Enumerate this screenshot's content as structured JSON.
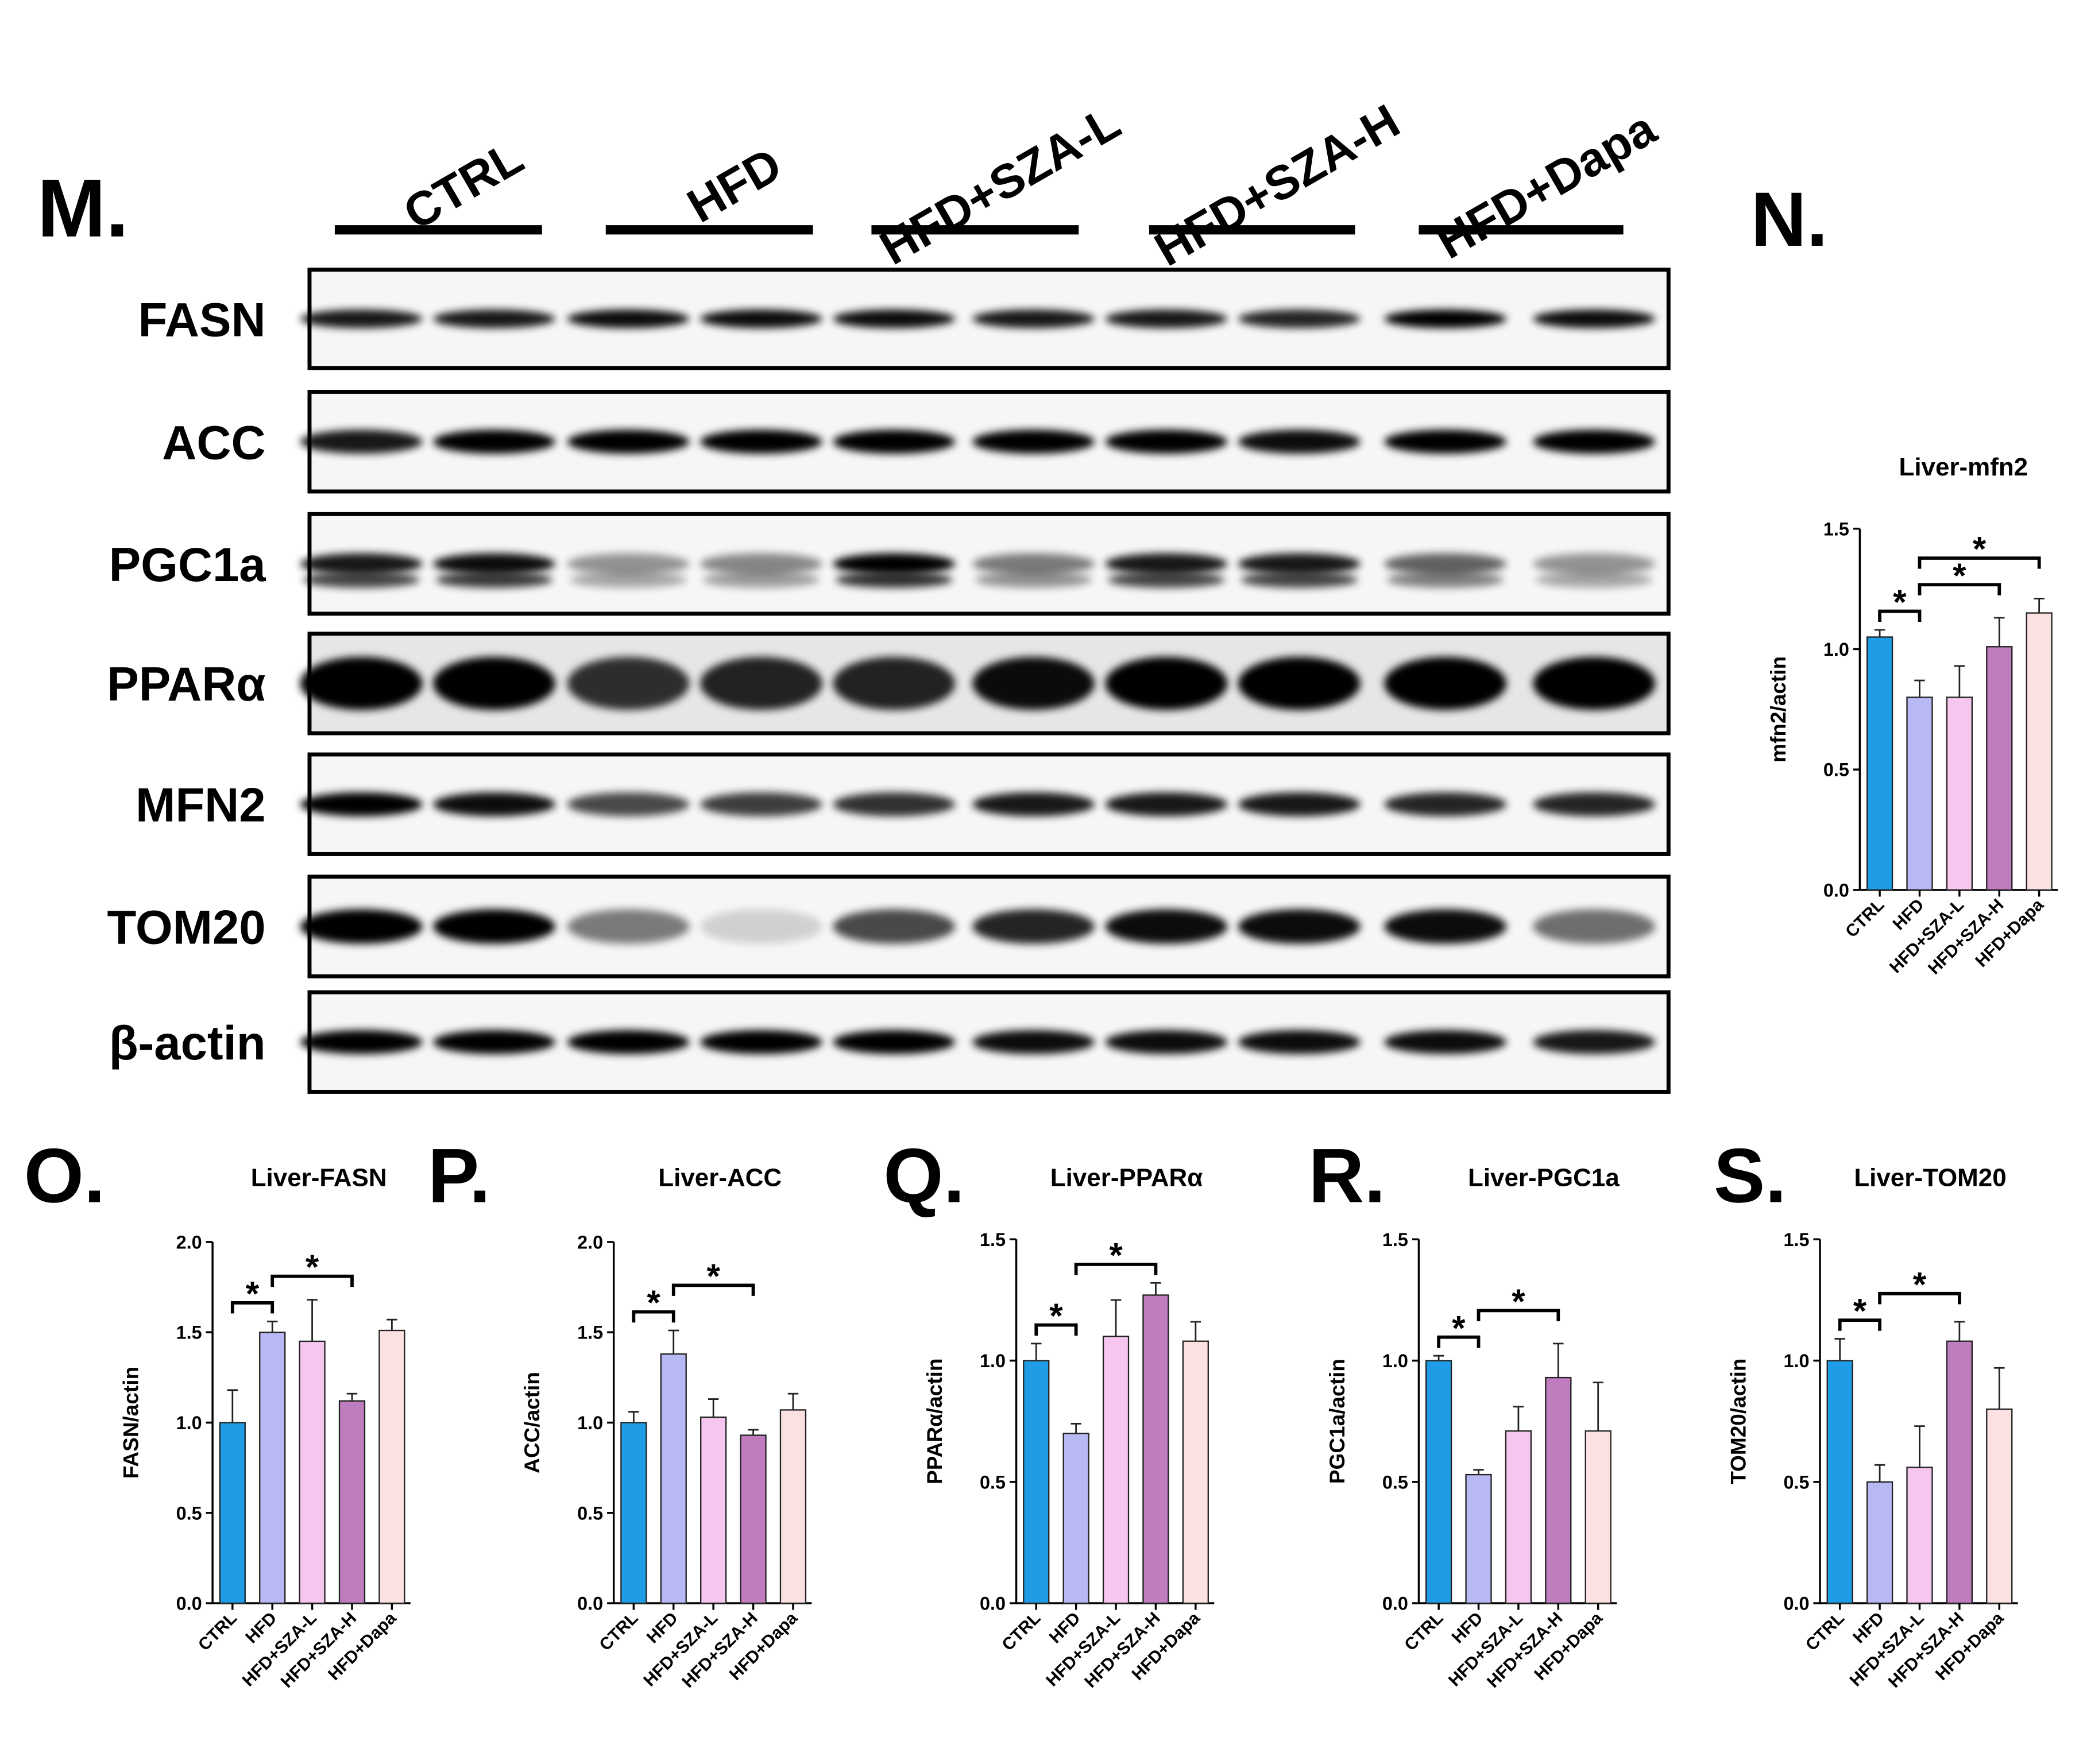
{
  "blot": {
    "panel": "M.",
    "groups": [
      "CTRL",
      "HFD",
      "HFD+SZA-L",
      "HFD+SZA-H",
      "HFD+Dapa"
    ],
    "proteins": [
      "FASN",
      "ACC",
      "PGC1a",
      "PPARα",
      "MFN2",
      "TOM20",
      "β-actin"
    ]
  },
  "chart_data": [
    {
      "type": "bar",
      "panel": "N.",
      "title": "Liver-mfn2",
      "y_label": "mfn2/actin",
      "categories": [
        "CTRL",
        "HFD",
        "HFD+SZA-L",
        "HFD+SZA-H",
        "HFD+Dapa"
      ],
      "values": [
        1.05,
        0.8,
        0.8,
        1.01,
        1.15
      ],
      "errors": [
        0.03,
        0.07,
        0.13,
        0.12,
        0.06
      ],
      "colors": [
        "#1e9de6",
        "#b8b8f4",
        "#f6c6ef",
        "#bf7cbf",
        "#fbe1e1"
      ],
      "ylim": [
        0,
        1.5
      ],
      "yticks": [
        {
          "value": 0,
          "label": "0.0"
        },
        0.5,
        {
          "value": 1,
          "label": "1.0"
        },
        1.5
      ],
      "significance": [
        {
          "pair": [
            "CTRL",
            "HFD"
          ],
          "label": "*"
        },
        {
          "pair": [
            "HFD",
            "HFD+SZA-H"
          ],
          "label": "*"
        },
        {
          "pair": [
            "HFD",
            "HFD+Dapa"
          ],
          "label": "*"
        }
      ]
    },
    {
      "type": "bar",
      "panel": "O.",
      "title": "Liver-FASN",
      "y_label": "FASN/actin",
      "categories": [
        "CTRL",
        "HFD",
        "HFD+SZA-L",
        "HFD+SZA-H",
        "HFD+Dapa"
      ],
      "values": [
        1.0,
        1.5,
        1.45,
        1.12,
        1.51
      ],
      "errors": [
        0.18,
        0.06,
        0.23,
        0.04,
        0.06
      ],
      "colors": [
        "#1e9de6",
        "#b8b8f4",
        "#f6c6ef",
        "#bf7cbf",
        "#fbe1e1"
      ],
      "ylim": [
        0,
        2
      ],
      "yticks": [
        {
          "value": 0,
          "label": "0.0"
        },
        0.5,
        {
          "value": 1,
          "label": "1.0"
        },
        1.5,
        {
          "value": 2,
          "label": "2.0"
        }
      ],
      "significance": [
        {
          "pair": [
            "CTRL",
            "HFD"
          ],
          "label": "*"
        },
        {
          "pair": [
            "HFD",
            "HFD+SZA-H"
          ],
          "label": "*"
        }
      ]
    },
    {
      "type": "bar",
      "panel": "P.",
      "title": "Liver-ACC",
      "y_label": "ACC/actin",
      "categories": [
        "CTRL",
        "HFD",
        "HFD+SZA-L",
        "HFD+SZA-H",
        "HFD+Dapa"
      ],
      "values": [
        1.0,
        1.38,
        1.03,
        0.93,
        1.07
      ],
      "errors": [
        0.06,
        0.13,
        0.1,
        0.03,
        0.09
      ],
      "colors": [
        "#1e9de6",
        "#b8b8f4",
        "#f6c6ef",
        "#bf7cbf",
        "#fbe1e1"
      ],
      "ylim": [
        0,
        2
      ],
      "yticks": [
        {
          "value": 0,
          "label": "0.0"
        },
        0.5,
        {
          "value": 1,
          "label": "1.0"
        },
        1.5,
        {
          "value": 2,
          "label": "2.0"
        }
      ],
      "significance": [
        {
          "pair": [
            "CTRL",
            "HFD"
          ],
          "label": "*"
        },
        {
          "pair": [
            "HFD",
            "HFD+SZA-H"
          ],
          "label": "*"
        }
      ]
    },
    {
      "type": "bar",
      "panel": "Q.",
      "title": "Liver-PPARα",
      "y_label": "PPARα/actin",
      "categories": [
        "CTRL",
        "HFD",
        "HFD+SZA-L",
        "HFD+SZA-H",
        "HFD+Dapa"
      ],
      "values": [
        1.0,
        0.7,
        1.1,
        1.27,
        1.08
      ],
      "errors": [
        0.07,
        0.04,
        0.15,
        0.05,
        0.08
      ],
      "colors": [
        "#1e9de6",
        "#b8b8f4",
        "#f6c6ef",
        "#bf7cbf",
        "#fbe1e1"
      ],
      "ylim": [
        0,
        1.5
      ],
      "yticks": [
        {
          "value": 0,
          "label": "0.0"
        },
        0.5,
        {
          "value": 1,
          "label": "1.0"
        },
        1.5
      ],
      "significance": [
        {
          "pair": [
            "CTRL",
            "HFD"
          ],
          "label": "*"
        },
        {
          "pair": [
            "HFD",
            "HFD+SZA-H"
          ],
          "label": "*"
        }
      ]
    },
    {
      "type": "bar",
      "panel": "R.",
      "title": "Liver-PGC1a",
      "y_label": "PGC1a/actin",
      "categories": [
        "CTRL",
        "HFD",
        "HFD+SZA-L",
        "HFD+SZA-H",
        "HFD+Dapa"
      ],
      "values": [
        1.0,
        0.53,
        0.71,
        0.93,
        0.71
      ],
      "errors": [
        0.02,
        0.02,
        0.1,
        0.14,
        0.2
      ],
      "colors": [
        "#1e9de6",
        "#b8b8f4",
        "#f6c6ef",
        "#bf7cbf",
        "#fbe1e1"
      ],
      "ylim": [
        0,
        1.5
      ],
      "yticks": [
        {
          "value": 0,
          "label": "0.0"
        },
        0.5,
        {
          "value": 1,
          "label": "1.0"
        },
        1.5
      ],
      "significance": [
        {
          "pair": [
            "CTRL",
            "HFD"
          ],
          "label": "*"
        },
        {
          "pair": [
            "HFD",
            "HFD+SZA-H"
          ],
          "label": "*"
        }
      ]
    },
    {
      "type": "bar",
      "panel": "S.",
      "title": "Liver-TOM20",
      "y_label": "TOM20/actin",
      "categories": [
        "CTRL",
        "HFD",
        "HFD+SZA-L",
        "HFD+SZA-H",
        "HFD+Dapa"
      ],
      "values": [
        1.0,
        0.5,
        0.56,
        1.08,
        0.8
      ],
      "errors": [
        0.09,
        0.07,
        0.17,
        0.08,
        0.17
      ],
      "colors": [
        "#1e9de6",
        "#b8b8f4",
        "#f6c6ef",
        "#bf7cbf",
        "#fbe1e1"
      ],
      "ylim": [
        0,
        1.5
      ],
      "yticks": [
        {
          "value": 0,
          "label": "0.0"
        },
        0.5,
        {
          "value": 1,
          "label": "1.0"
        },
        1.5
      ],
      "significance": [
        {
          "pair": [
            "CTRL",
            "HFD"
          ],
          "label": "*"
        },
        {
          "pair": [
            "HFD",
            "HFD+SZA-H"
          ],
          "label": "*"
        }
      ]
    }
  ]
}
